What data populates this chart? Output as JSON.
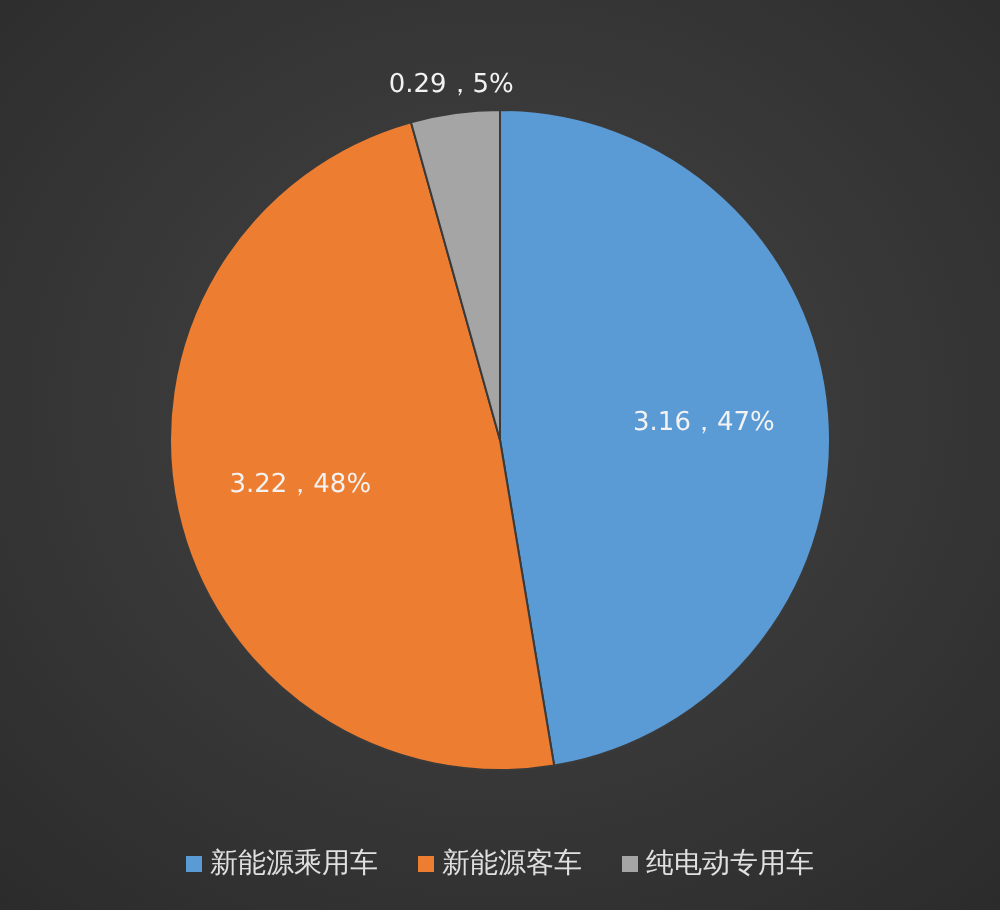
{
  "chart_data": {
    "type": "pie",
    "categories": [
      "新能源乘用车",
      "新能源客车",
      "纯电动专用车"
    ],
    "values": [
      3.16,
      3.22,
      0.29
    ],
    "colors": [
      "#5b9bd5",
      "#ed7d31",
      "#a5a5a5"
    ],
    "value_labels": [
      "3.16，47%",
      "3.22，48%",
      "0.29，5%"
    ],
    "legend": "bottom"
  }
}
